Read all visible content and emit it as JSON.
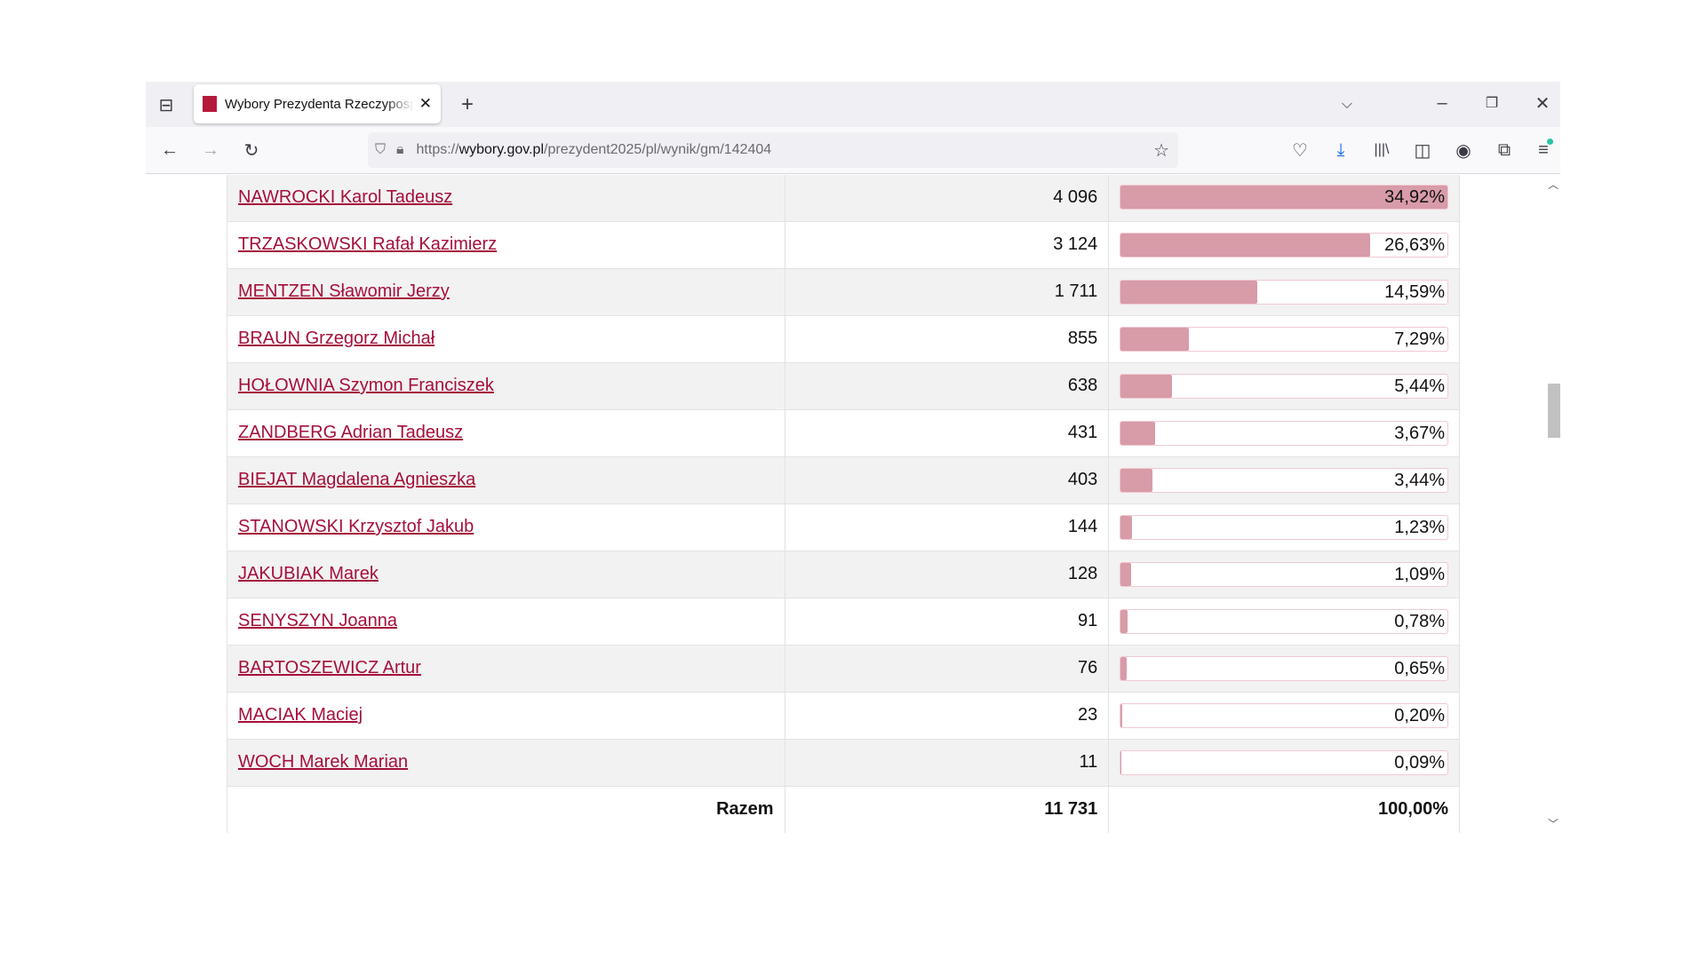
{
  "browser": {
    "tab_title": "Wybory Prezydenta Rzeczypospolitej",
    "url_prefix": "https://",
    "url_domain": "wybory.gov.pl",
    "url_path": "/prezydent2025/pl/wynik/gm/142404"
  },
  "rows": [
    {
      "name": "NAWROCKI Karol Tadeusz",
      "votes": "4 096",
      "pct": "34,92%",
      "value": 34.92
    },
    {
      "name": "TRZASKOWSKI Rafał Kazimierz",
      "votes": "3 124",
      "pct": "26,63%",
      "value": 26.63
    },
    {
      "name": "MENTZEN Sławomir Jerzy",
      "votes": "1 711",
      "pct": "14,59%",
      "value": 14.59
    },
    {
      "name": "BRAUN Grzegorz Michał",
      "votes": "855",
      "pct": "7,29%",
      "value": 7.29
    },
    {
      "name": "HOŁOWNIA Szymon Franciszek",
      "votes": "638",
      "pct": "5,44%",
      "value": 5.44
    },
    {
      "name": "ZANDBERG Adrian Tadeusz",
      "votes": "431",
      "pct": "3,67%",
      "value": 3.67
    },
    {
      "name": "BIEJAT Magdalena Agnieszka",
      "votes": "403",
      "pct": "3,44%",
      "value": 3.44
    },
    {
      "name": "STANOWSKI Krzysztof Jakub",
      "votes": "144",
      "pct": "1,23%",
      "value": 1.23
    },
    {
      "name": "JAKUBIAK Marek",
      "votes": "128",
      "pct": "1,09%",
      "value": 1.09
    },
    {
      "name": "SENYSZYN Joanna",
      "votes": "91",
      "pct": "0,78%",
      "value": 0.78
    },
    {
      "name": "BARTOSZEWICZ Artur",
      "votes": "76",
      "pct": "0,65%",
      "value": 0.65
    },
    {
      "name": "MACIAK Maciej",
      "votes": "23",
      "pct": "0,20%",
      "value": 0.2
    },
    {
      "name": "WOCH Marek Marian",
      "votes": "11",
      "pct": "0,09%",
      "value": 0.09
    }
  ],
  "total": {
    "label": "Razem",
    "votes": "11 731",
    "pct": "100,00%"
  },
  "colors": {
    "link": "#a50f3a",
    "bar": "#d89ba8"
  }
}
